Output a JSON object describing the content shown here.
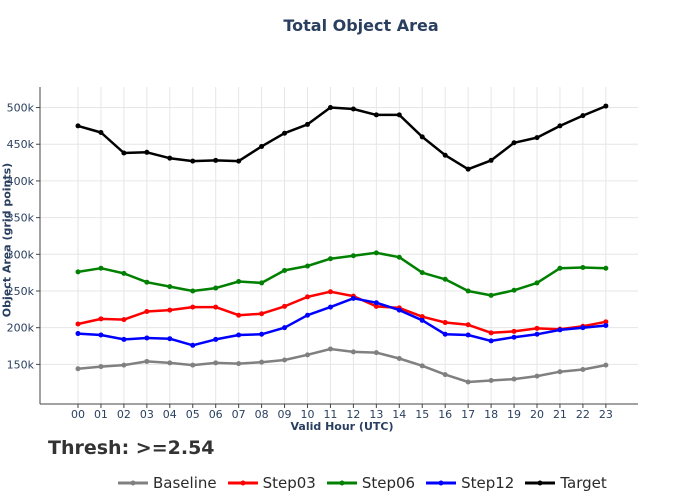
{
  "chart_data": {
    "type": "line",
    "title": "Total Object Area",
    "subtitle": "Thresh: >=2.54",
    "xlabel": "Valid Hour (UTC)",
    "ylabel": "Object Area (grid points)",
    "categories": [
      "00",
      "01",
      "02",
      "03",
      "04",
      "05",
      "06",
      "07",
      "08",
      "09",
      "10",
      "11",
      "12",
      "13",
      "14",
      "15",
      "16",
      "17",
      "18",
      "19",
      "20",
      "21",
      "22",
      "23"
    ],
    "ylim": [
      96000,
      528000
    ],
    "yticks": [
      150000,
      200000,
      250000,
      300000,
      350000,
      400000,
      450000,
      500000
    ],
    "ytick_labels": [
      "150k",
      "200k",
      "250k",
      "300k",
      "350k",
      "400k",
      "450k",
      "500k"
    ],
    "grid": true,
    "legend_position": "bottom",
    "series": [
      {
        "name": "Baseline",
        "color": "#808080",
        "values": [
          144000,
          147000,
          149000,
          154000,
          152000,
          149000,
          152000,
          151000,
          153000,
          156000,
          163000,
          171000,
          167000,
          166000,
          158000,
          148000,
          136000,
          126000,
          128000,
          130000,
          134000,
          140000,
          143000,
          149000
        ]
      },
      {
        "name": "Step03",
        "color": "#ff0000",
        "values": [
          205000,
          212000,
          211000,
          222000,
          224000,
          228000,
          228000,
          217000,
          219000,
          229000,
          242000,
          249000,
          243000,
          229000,
          227000,
          215000,
          207000,
          204000,
          193000,
          195000,
          199000,
          198000,
          202000,
          208000
        ]
      },
      {
        "name": "Step06",
        "color": "#008000",
        "values": [
          276000,
          281000,
          274000,
          262000,
          256000,
          250000,
          254000,
          263000,
          261000,
          278000,
          284000,
          294000,
          298000,
          302000,
          296000,
          275000,
          266000,
          250000,
          244000,
          251000,
          261000,
          281000,
          282000,
          281000
        ]
      },
      {
        "name": "Step12",
        "color": "#0000ff",
        "values": [
          192000,
          190000,
          184000,
          186000,
          185000,
          176000,
          184000,
          190000,
          191000,
          200000,
          217000,
          228000,
          240000,
          234000,
          224000,
          210000,
          191000,
          190000,
          182000,
          187000,
          191000,
          197000,
          200000,
          203000
        ]
      },
      {
        "name": "Target",
        "color": "#000000",
        "values": [
          475000,
          466000,
          438000,
          439000,
          431000,
          427000,
          428000,
          427000,
          447000,
          465000,
          477000,
          500000,
          498000,
          490000,
          490000,
          460000,
          435000,
          416000,
          428000,
          452000,
          459000,
          475000,
          489000,
          502000
        ]
      }
    ]
  }
}
